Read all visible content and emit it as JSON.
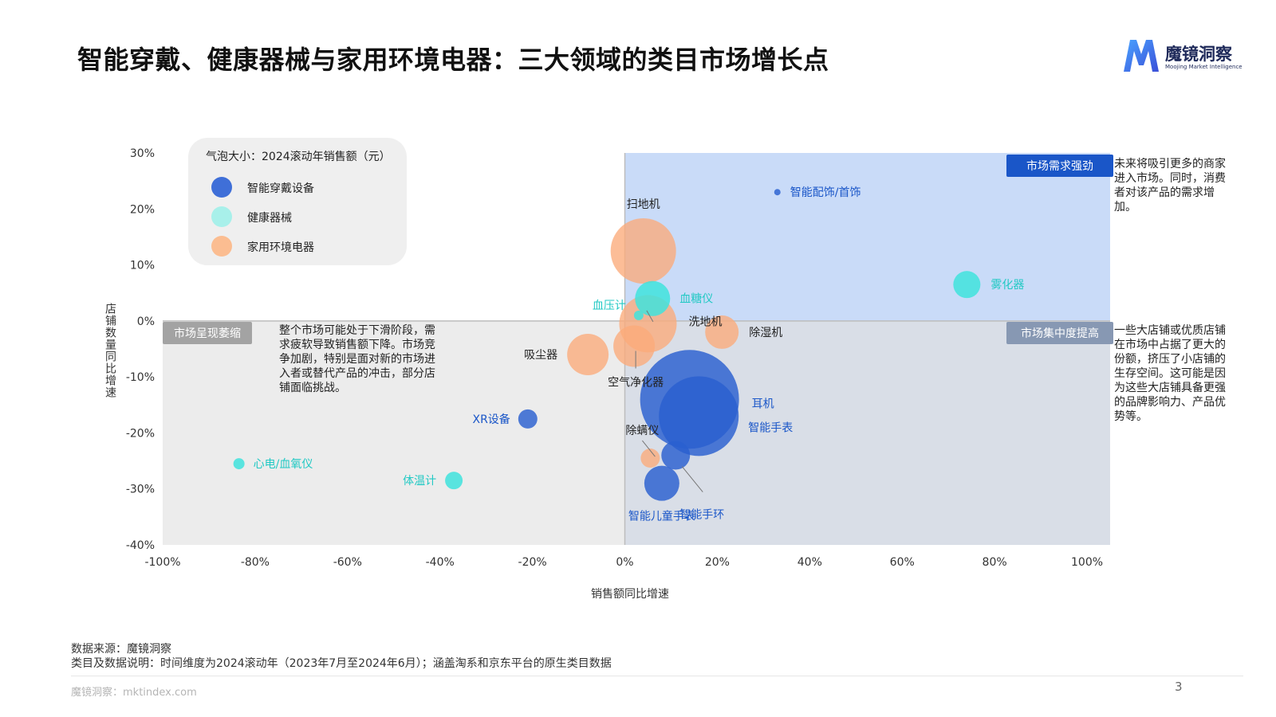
{
  "title": "智能穿戴、健康器械与家用环境电器：三大领域的类目市场增长点",
  "logo": {
    "name": "魔镜洞察",
    "sub": "Moojing Market Intelligence"
  },
  "legend": {
    "title": "气泡大小：2024滚动年销售额（元）",
    "items": [
      {
        "label": "智能穿戴设备",
        "color": "#3f6fd8"
      },
      {
        "label": "健康器械",
        "color": "#a8f0ea"
      },
      {
        "label": "家用环境电器",
        "color": "#fbbd91"
      }
    ]
  },
  "quadrants": {
    "top_right": {
      "tag": "市场需求强劲",
      "note": "未来将吸引更多的商家进入市场。同时，消费者对该产品的需求增加。"
    },
    "bottom_left": {
      "tag": "市场呈现萎缩",
      "note": "整个市场可能处于下滑阶段，需求疲软导致销售额下降。市场竞争加剧，特别是面对新的市场进入者或替代产品的冲击，部分店铺面临挑战。"
    },
    "bottom_right": {
      "tag": "市场集中度提高",
      "note": "一些大店铺或优质店铺在市场中占据了更大的份额，挤压了小店铺的生存空间。这可能是因为这些大店铺具备更强的品牌影响力、产品优势等。"
    }
  },
  "chart_data": {
    "type": "scatter",
    "xlabel": "销售额同比增速",
    "ylabel": "店铺数量同比增速",
    "xlim": [
      -100,
      105
    ],
    "ylim": [
      -40,
      30
    ],
    "xticks": [
      "-100%",
      "-80%",
      "-60%",
      "-40%",
      "-20%",
      "0%",
      "20%",
      "40%",
      "60%",
      "80%",
      "100%"
    ],
    "yticks": [
      "30%",
      "20%",
      "10%",
      "0%",
      "-10%",
      "-20%",
      "-30%",
      "-40%"
    ],
    "series_colors": {
      "wearable": "#2a5fd0",
      "health": "#3fe3dd",
      "home": "#fbab7a"
    },
    "points": [
      {
        "name": "智能配饰/首饰",
        "series": "wearable",
        "x": 33,
        "y": 23,
        "size": 4
      },
      {
        "name": "耳机",
        "series": "wearable",
        "x": 14,
        "y": -14,
        "size": 62
      },
      {
        "name": "智能手表",
        "series": "wearable",
        "x": 16,
        "y": -17,
        "size": 50
      },
      {
        "name": "智能手环",
        "series": "wearable",
        "x": 11,
        "y": -24,
        "size": 18
      },
      {
        "name": "智能儿童手表",
        "series": "wearable",
        "x": 8,
        "y": -29,
        "size": 22
      },
      {
        "name": "XR设备",
        "series": "wearable",
        "x": -21,
        "y": -17.5,
        "size": 12
      },
      {
        "name": "雾化器",
        "series": "health",
        "x": 74,
        "y": 6.5,
        "size": 17
      },
      {
        "name": "血糖仪",
        "series": "health",
        "x": 6,
        "y": 4,
        "size": 22
      },
      {
        "name": "血压计",
        "series": "health",
        "x": 3,
        "y": 1,
        "size": 6
      },
      {
        "name": "心电/血氧仪",
        "series": "health",
        "x": -83.5,
        "y": -25.5,
        "size": 7
      },
      {
        "name": "体温计",
        "series": "health",
        "x": -37,
        "y": -28.5,
        "size": 11
      },
      {
        "name": "扫地机",
        "series": "home",
        "x": 4,
        "y": 12.5,
        "size": 41
      },
      {
        "name": "洗地机",
        "series": "home",
        "x": 5,
        "y": -0.5,
        "size": 36
      },
      {
        "name": "除湿机",
        "series": "home",
        "x": 21,
        "y": -2,
        "size": 21
      },
      {
        "name": "吸尘器",
        "series": "home",
        "x": -8,
        "y": -6,
        "size": 26
      },
      {
        "name": "空气净化器",
        "series": "home",
        "x": 2,
        "y": -4.5,
        "size": 26
      },
      {
        "name": "除螨仪",
        "series": "home",
        "x": 5.5,
        "y": -24.5,
        "size": 12
      }
    ]
  },
  "footer": {
    "source": "数据来源：魔镜洞察",
    "desc": "类目及数据说明：时间维度为2024滚动年（2023年7月至2024年6月）；涵盖淘系和京东平台的原生类目数据",
    "site": "魔镜洞察：mktindex.com",
    "page": "3"
  }
}
